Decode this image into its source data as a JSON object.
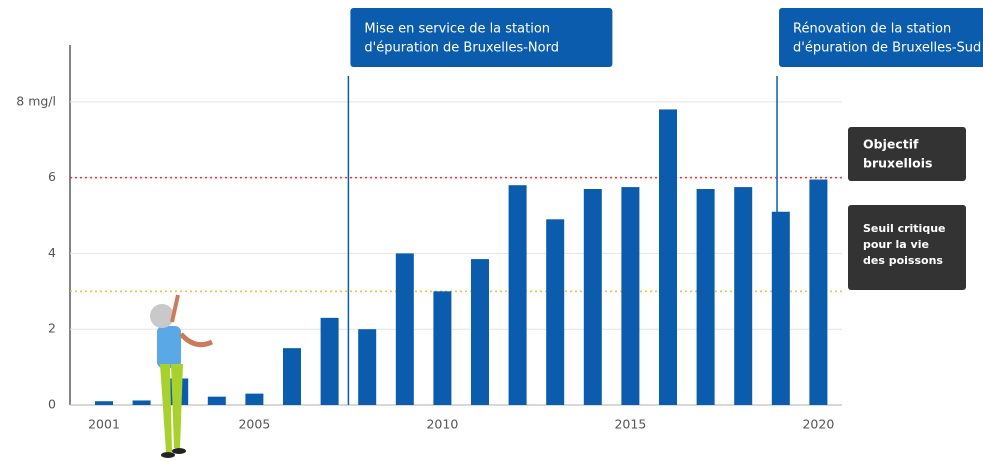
{
  "chart_data": {
    "type": "bar",
    "categories": [
      "2001",
      null,
      null,
      null,
      "2005",
      null,
      null,
      null,
      null,
      "2010",
      null,
      null,
      null,
      null,
      "2015",
      null,
      null,
      null,
      null,
      "2020"
    ],
    "values": [
      0.1,
      0.12,
      0.7,
      0.22,
      0.3,
      1.5,
      2.3,
      2.0,
      4.0,
      3.0,
      3.85,
      5.8,
      4.9,
      5.7,
      5.75,
      7.8,
      5.7,
      5.75,
      5.1,
      5.95
    ],
    "color": "#0b5cad",
    "ylim": [
      0,
      9.5
    ],
    "yticks": [
      0,
      2,
      4,
      6,
      {
        "value": 8,
        "label": "8 mg/l"
      }
    ],
    "grid": true,
    "reference_lines": [
      {
        "value": 6,
        "color": "#e53935",
        "lines": [
          "Objectif",
          "bruxellois"
        ]
      },
      {
        "value": 3,
        "color": "#e6c84a",
        "lines": [
          "Seuil critique",
          "pour la vie",
          "des poissons"
        ]
      }
    ],
    "annotations": [
      {
        "x": 2007.5,
        "lines": [
          "Mise en service de la station",
          "d'épuration de Bruxelles-Nord"
        ]
      },
      {
        "x": 2018.9,
        "lines": [
          "Rénovation de la station",
          "d'épuration de Bruxelles-Sud"
        ]
      }
    ]
  }
}
